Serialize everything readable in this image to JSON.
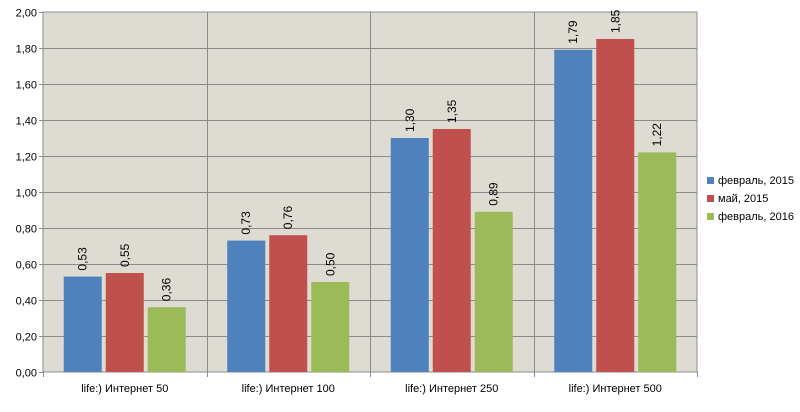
{
  "chart_data": {
    "type": "bar",
    "categories": [
      "life:) Интернет 50",
      "life:) Интернет 100",
      "life:) Интернет 250",
      "life:) Интернет 500"
    ],
    "series": [
      {
        "name": "февраль, 2015",
        "values": [
          0.53,
          0.73,
          1.3,
          1.79
        ],
        "labels": [
          "0,53",
          "0,73",
          "1,30",
          "1,79"
        ],
        "color": "#4f81bd"
      },
      {
        "name": "май, 2015",
        "values": [
          0.55,
          0.76,
          1.35,
          1.85
        ],
        "labels": [
          "0,55",
          "0,76",
          "1,35",
          "1,85"
        ],
        "color": "#c0504d"
      },
      {
        "name": "февраль, 2016",
        "values": [
          0.36,
          0.5,
          0.89,
          1.22
        ],
        "labels": [
          "0,36",
          "0,50",
          "0,89",
          "1,22"
        ],
        "color": "#9bbb59"
      }
    ],
    "ylim": [
      0,
      2.0
    ],
    "y_ticks": [
      "0,00",
      "0,20",
      "0,40",
      "0,60",
      "0,80",
      "1,00",
      "1,20",
      "1,40",
      "1,60",
      "1,80",
      "2,00"
    ],
    "grid": true,
    "legend_position": "right",
    "plot_background": "#dedbd3",
    "page_background": "#ffffff"
  }
}
